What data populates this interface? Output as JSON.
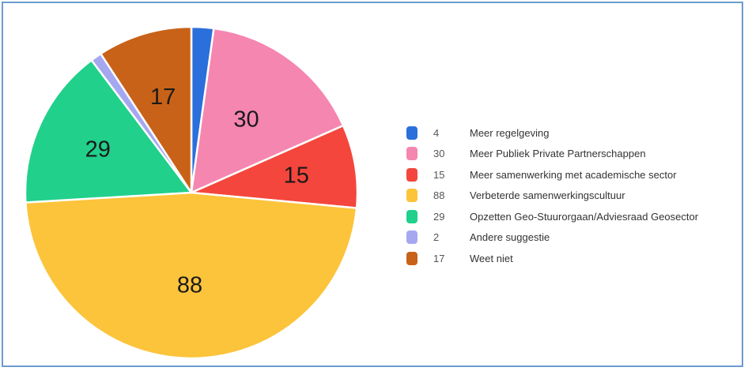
{
  "chart_data": {
    "type": "pie",
    "title": "",
    "categories": [
      "Meer regelgeving",
      "Meer Publiek Private Partnerschappen",
      "Meer samenwerking met academische sector",
      "Verbeterde samenwerkingscultuur",
      "Opzetten Geo-Stuurorgaan/Adviesraad Geosector",
      "Andere suggestie",
      "Weet niet"
    ],
    "values": [
      4,
      30,
      15,
      88,
      29,
      2,
      17
    ],
    "slice_labels": [
      "",
      "30",
      "15",
      "88",
      "29",
      "",
      "17"
    ],
    "colors": [
      "#2a6fdb",
      "#f586b0",
      "#f4463c",
      "#fcc43b",
      "#21d08b",
      "#a6a7f1",
      "#c86218"
    ],
    "legend_position": "right",
    "start_angle": "12 o'clock, clockwise"
  }
}
